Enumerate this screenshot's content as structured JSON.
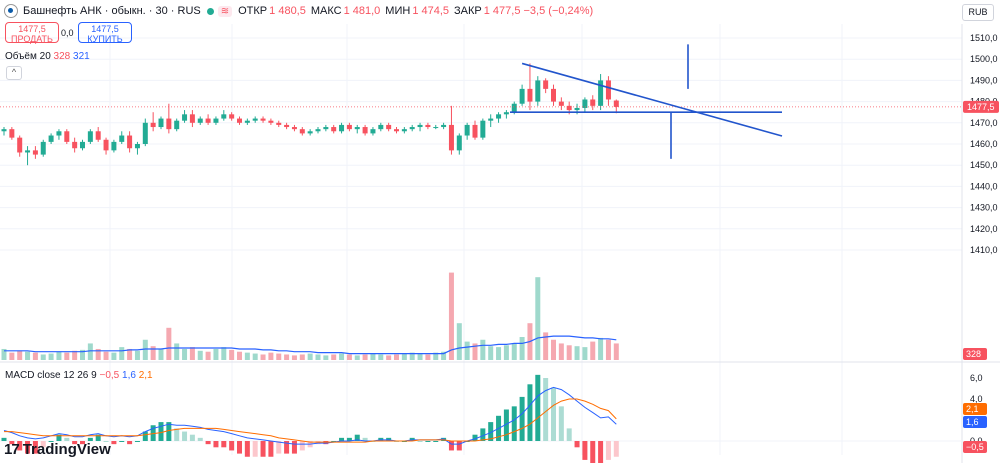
{
  "header": {
    "symbol_title": "Башнефть АНК · обыкн. · 30 · RUS",
    "wave_icon": "≋",
    "ohlc": [
      {
        "key": "ОТКР",
        "value": "1 480,5"
      },
      {
        "key": "МАКС",
        "value": "1 481,0"
      },
      {
        "key": "МИН",
        "value": "1 474,5"
      },
      {
        "key": "ЗАКР",
        "value": "1 477,5 −3,5 (−0,24%)"
      }
    ]
  },
  "trade": {
    "sell_price": "1477,5",
    "sell_label": "ПРОДАТЬ",
    "spread": "0,0",
    "buy_price": "1477,5",
    "buy_label": "КУПИТЬ"
  },
  "volume_legend": {
    "name": "Объём 20",
    "v1": "328",
    "v2": "321"
  },
  "macd_legend": {
    "name": "MACD close 12 26 9",
    "v1": "−0,5",
    "v2": "1,6",
    "v3": "2,1"
  },
  "currency": "RUB",
  "brand": {
    "mark": "17",
    "name": "TradingView"
  },
  "colors": {
    "up": "#22ab94",
    "down": "#f7525f",
    "line": "#2962ff",
    "macd_line": "#2962ff",
    "signal_line": "#ff6d00"
  },
  "price_axis": {
    "ticks": [
      "1510,0",
      "1500,0",
      "1490,0",
      "1480,0",
      "1470,0",
      "1460,0",
      "1450,0",
      "1440,0",
      "1430,0",
      "1420,0",
      "1410,0"
    ],
    "last_price_label": "1477,5",
    "volume_label": "328"
  },
  "macd_axis": {
    "ticks": [
      "6,0",
      "4,0",
      "2,0",
      "0,0"
    ],
    "labels": [
      "2,1",
      "1,6",
      "−0,5"
    ]
  },
  "chart_data": {
    "type": "candlestick",
    "price_range": [
      1410,
      1515
    ],
    "last_price": 1477.5,
    "candles": [
      {
        "o": 1466,
        "h": 1468,
        "l": 1464,
        "c": 1467
      },
      {
        "o": 1467,
        "h": 1468,
        "l": 1462,
        "c": 1463
      },
      {
        "o": 1463,
        "h": 1464,
        "l": 1454,
        "c": 1456
      },
      {
        "o": 1456,
        "h": 1459,
        "l": 1450,
        "c": 1457
      },
      {
        "o": 1457,
        "h": 1459,
        "l": 1453,
        "c": 1455
      },
      {
        "o": 1455,
        "h": 1462,
        "l": 1454,
        "c": 1461
      },
      {
        "o": 1461,
        "h": 1465,
        "l": 1460,
        "c": 1464
      },
      {
        "o": 1464,
        "h": 1467,
        "l": 1462,
        "c": 1466
      },
      {
        "o": 1466,
        "h": 1467,
        "l": 1460,
        "c": 1461
      },
      {
        "o": 1461,
        "h": 1463,
        "l": 1456,
        "c": 1458
      },
      {
        "o": 1458,
        "h": 1462,
        "l": 1457,
        "c": 1461
      },
      {
        "o": 1461,
        "h": 1467,
        "l": 1460,
        "c": 1466
      },
      {
        "o": 1466,
        "h": 1468,
        "l": 1461,
        "c": 1462
      },
      {
        "o": 1462,
        "h": 1463,
        "l": 1455,
        "c": 1457
      },
      {
        "o": 1457,
        "h": 1462,
        "l": 1456,
        "c": 1461
      },
      {
        "o": 1461,
        "h": 1466,
        "l": 1460,
        "c": 1464
      },
      {
        "o": 1464,
        "h": 1466,
        "l": 1456,
        "c": 1458
      },
      {
        "o": 1458,
        "h": 1461,
        "l": 1455,
        "c": 1460
      },
      {
        "o": 1460,
        "h": 1472,
        "l": 1459,
        "c": 1470
      },
      {
        "o": 1470,
        "h": 1475,
        "l": 1466,
        "c": 1468
      },
      {
        "o": 1468,
        "h": 1473,
        "l": 1467,
        "c": 1472
      },
      {
        "o": 1472,
        "h": 1479,
        "l": 1465,
        "c": 1467
      },
      {
        "o": 1467,
        "h": 1472,
        "l": 1466,
        "c": 1471
      },
      {
        "o": 1471,
        "h": 1476,
        "l": 1470,
        "c": 1474
      },
      {
        "o": 1474,
        "h": 1476,
        "l": 1468,
        "c": 1470
      },
      {
        "o": 1470,
        "h": 1473,
        "l": 1469,
        "c": 1472
      },
      {
        "o": 1472,
        "h": 1474,
        "l": 1469,
        "c": 1470
      },
      {
        "o": 1470,
        "h": 1473,
        "l": 1469,
        "c": 1472
      },
      {
        "o": 1472,
        "h": 1476,
        "l": 1471,
        "c": 1474
      },
      {
        "o": 1474,
        "h": 1475,
        "l": 1471,
        "c": 1472
      },
      {
        "o": 1472,
        "h": 1473,
        "l": 1469,
        "c": 1470
      },
      {
        "o": 1470,
        "h": 1472,
        "l": 1469,
        "c": 1471
      },
      {
        "o": 1471,
        "h": 1473,
        "l": 1470,
        "c": 1472
      },
      {
        "o": 1472,
        "h": 1473,
        "l": 1470,
        "c": 1471
      },
      {
        "o": 1471,
        "h": 1472,
        "l": 1469,
        "c": 1470
      },
      {
        "o": 1470,
        "h": 1471,
        "l": 1468,
        "c": 1469
      },
      {
        "o": 1469,
        "h": 1470,
        "l": 1467,
        "c": 1468
      },
      {
        "o": 1468,
        "h": 1469,
        "l": 1466,
        "c": 1467
      },
      {
        "o": 1467,
        "h": 1468,
        "l": 1464,
        "c": 1465
      },
      {
        "o": 1465,
        "h": 1467,
        "l": 1464,
        "c": 1466
      },
      {
        "o": 1466,
        "h": 1468,
        "l": 1465,
        "c": 1467
      },
      {
        "o": 1467,
        "h": 1469,
        "l": 1466,
        "c": 1468
      },
      {
        "o": 1468,
        "h": 1469,
        "l": 1465,
        "c": 1466
      },
      {
        "o": 1466,
        "h": 1470,
        "l": 1465,
        "c": 1469
      },
      {
        "o": 1469,
        "h": 1470,
        "l": 1466,
        "c": 1467
      },
      {
        "o": 1467,
        "h": 1469,
        "l": 1465,
        "c": 1468
      },
      {
        "o": 1468,
        "h": 1469,
        "l": 1464,
        "c": 1465
      },
      {
        "o": 1465,
        "h": 1468,
        "l": 1464,
        "c": 1467
      },
      {
        "o": 1467,
        "h": 1470,
        "l": 1466,
        "c": 1469
      },
      {
        "o": 1469,
        "h": 1470,
        "l": 1466,
        "c": 1467
      },
      {
        "o": 1467,
        "h": 1468,
        "l": 1465,
        "c": 1466
      },
      {
        "o": 1466,
        "h": 1468,
        "l": 1465,
        "c": 1467
      },
      {
        "o": 1467,
        "h": 1469,
        "l": 1466,
        "c": 1468
      },
      {
        "o": 1468,
        "h": 1470,
        "l": 1466,
        "c": 1469
      },
      {
        "o": 1469,
        "h": 1470,
        "l": 1467,
        "c": 1468
      },
      {
        "o": 1468,
        "h": 1469,
        "l": 1467,
        "c": 1468
      },
      {
        "o": 1468,
        "h": 1470,
        "l": 1467,
        "c": 1469
      },
      {
        "o": 1469,
        "h": 1478,
        "l": 1455,
        "c": 1457
      },
      {
        "o": 1457,
        "h": 1465,
        "l": 1455,
        "c": 1464
      },
      {
        "o": 1464,
        "h": 1470,
        "l": 1462,
        "c": 1469
      },
      {
        "o": 1469,
        "h": 1471,
        "l": 1462,
        "c": 1463
      },
      {
        "o": 1463,
        "h": 1472,
        "l": 1462,
        "c": 1471
      },
      {
        "o": 1471,
        "h": 1474,
        "l": 1468,
        "c": 1472
      },
      {
        "o": 1472,
        "h": 1475,
        "l": 1470,
        "c": 1474
      },
      {
        "o": 1474,
        "h": 1476,
        "l": 1472,
        "c": 1475
      },
      {
        "o": 1475,
        "h": 1480,
        "l": 1474,
        "c": 1479
      },
      {
        "o": 1479,
        "h": 1488,
        "l": 1478,
        "c": 1486
      },
      {
        "o": 1486,
        "h": 1498,
        "l": 1476,
        "c": 1480
      },
      {
        "o": 1480,
        "h": 1492,
        "l": 1478,
        "c": 1490
      },
      {
        "o": 1490,
        "h": 1491,
        "l": 1484,
        "c": 1486
      },
      {
        "o": 1486,
        "h": 1488,
        "l": 1478,
        "c": 1480
      },
      {
        "o": 1480,
        "h": 1482,
        "l": 1476,
        "c": 1478
      },
      {
        "o": 1478,
        "h": 1480,
        "l": 1474,
        "c": 1476
      },
      {
        "o": 1476,
        "h": 1479,
        "l": 1474,
        "c": 1477
      },
      {
        "o": 1477,
        "h": 1482,
        "l": 1475,
        "c": 1481
      },
      {
        "o": 1481,
        "h": 1483,
        "l": 1476,
        "c": 1478
      },
      {
        "o": 1478,
        "h": 1493,
        "l": 1476,
        "c": 1490
      },
      {
        "o": 1490,
        "h": 1492,
        "l": 1478,
        "c": 1481
      },
      {
        "o": 1480.5,
        "h": 1481,
        "l": 1474.5,
        "c": 1477.5
      }
    ],
    "volume": [
      12,
      8,
      10,
      9,
      8,
      6,
      7,
      9,
      8,
      10,
      11,
      18,
      12,
      9,
      8,
      14,
      12,
      10,
      22,
      15,
      12,
      35,
      18,
      12,
      14,
      10,
      9,
      12,
      14,
      11,
      9,
      8,
      7,
      6,
      8,
      7,
      6,
      5,
      6,
      7,
      6,
      5,
      6,
      7,
      6,
      5,
      6,
      7,
      6,
      5,
      6,
      7,
      8,
      7,
      6,
      8,
      9,
      95,
      40,
      20,
      18,
      22,
      15,
      14,
      16,
      18,
      25,
      40,
      90,
      30,
      22,
      18,
      16,
      15,
      14,
      20,
      24,
      22,
      18
    ],
    "volume_ma": [
      10,
      10,
      10,
      10,
      9,
      9,
      9,
      9,
      9,
      9,
      9,
      10,
      10,
      10,
      10,
      10,
      11,
      11,
      12,
      12,
      12,
      13,
      13,
      13,
      13,
      13,
      13,
      13,
      13,
      13,
      12,
      12,
      12,
      11,
      11,
      10,
      10,
      9,
      9,
      9,
      8,
      8,
      8,
      8,
      7,
      7,
      7,
      7,
      7,
      7,
      7,
      7,
      7,
      7,
      7,
      7,
      7,
      11,
      13,
      14,
      15,
      16,
      16,
      17,
      17,
      18,
      18,
      20,
      24,
      25,
      26,
      26,
      26,
      25,
      24,
      24,
      23,
      23,
      22
    ],
    "macd": [
      1.0,
      0.8,
      0.5,
      0.3,
      0.2,
      0.3,
      0.5,
      0.7,
      0.6,
      0.4,
      0.4,
      0.6,
      0.7,
      0.5,
      0.4,
      0.5,
      0.4,
      0.5,
      0.9,
      1.2,
      1.4,
      1.6,
      1.5,
      1.5,
      1.4,
      1.3,
      1.1,
      1.0,
      0.9,
      0.7,
      0.5,
      0.3,
      0.2,
      0.1,
      0.0,
      -0.1,
      -0.2,
      -0.3,
      -0.3,
      -0.3,
      -0.2,
      -0.2,
      -0.1,
      0.0,
      0.0,
      0.1,
      0.0,
      0.0,
      0.1,
      0.1,
      0.0,
      0.0,
      0.1,
      0.1,
      0.1,
      0.1,
      0.2,
      -0.3,
      -0.3,
      0.0,
      0.2,
      0.5,
      0.8,
      1.2,
      1.6,
      2.0,
      2.6,
      3.4,
      4.3,
      4.8,
      5.1,
      4.9,
      4.4,
      3.8,
      3.2,
      2.7,
      2.2,
      2.3,
      1.6
    ],
    "signal": [
      0.9,
      0.9,
      0.8,
      0.7,
      0.6,
      0.5,
      0.5,
      0.5,
      0.5,
      0.5,
      0.5,
      0.5,
      0.5,
      0.5,
      0.5,
      0.5,
      0.5,
      0.5,
      0.6,
      0.7,
      0.8,
      1.0,
      1.1,
      1.2,
      1.2,
      1.2,
      1.2,
      1.2,
      1.1,
      1.0,
      0.9,
      0.8,
      0.7,
      0.6,
      0.5,
      0.3,
      0.2,
      0.1,
      0.0,
      -0.1,
      -0.1,
      -0.1,
      -0.1,
      -0.1,
      -0.1,
      -0.1,
      -0.1,
      0.0,
      0.0,
      0.0,
      0.0,
      0.0,
      0.0,
      0.1,
      0.1,
      0.1,
      0.1,
      0.0,
      0.0,
      0.0,
      0.0,
      0.1,
      0.2,
      0.4,
      0.6,
      0.9,
      1.2,
      1.6,
      2.2,
      2.8,
      3.4,
      3.8,
      4.0,
      4.0,
      3.8,
      3.5,
      3.1,
      2.9,
      2.1
    ],
    "macd_range": [
      -0.8,
      6.5
    ],
    "drawings": {
      "triangle_upper": {
        "from": {
          "i": 66,
          "p": 1498
        },
        "to": {
          "i": 97,
          "p": 1478
        }
      },
      "triangle_base": {
        "from": {
          "i": 64,
          "p": 1475
        },
        "to": {
          "i": 97,
          "p": 1475
        }
      },
      "target_up": {
        "i": 85,
        "from": 1486,
        "to": 1507
      },
      "target_down": {
        "i": 83,
        "from": 1475,
        "to": 1453
      }
    }
  }
}
